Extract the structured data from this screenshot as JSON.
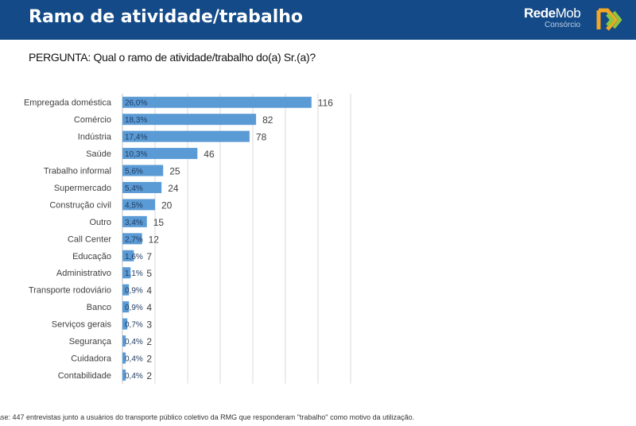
{
  "header": {
    "title": "Ramo de atividade/trabalho",
    "logo": {
      "brand_bold": "Rede",
      "brand_light": "Mob",
      "sub": "Consórcio",
      "colors": [
        "#f5a623",
        "#8dc63f"
      ]
    }
  },
  "question": "PERGUNTA: Qual o ramo de atividade/trabalho do(a) Sr.(a)?",
  "footer": "ase: 447 entrevistas junto a usuários do transporte público coletivo da RMG que responderam \"trabalho\" como motivo da utilização.",
  "chart_data": {
    "type": "bar",
    "orientation": "horizontal",
    "categories": [
      "Empregada doméstica",
      "Comércio",
      "Indústria",
      "Saúde",
      "Trabalho informal",
      "Supermercado",
      "Construção civil",
      "Outro",
      "Call Center",
      "Educação",
      "Administrativo",
      "Transporte rodoviário",
      "Banco",
      "Serviços gerais",
      "Segurança",
      "Cuidadora",
      "Contabilidade"
    ],
    "values": [
      116,
      82,
      78,
      46,
      25,
      24,
      20,
      15,
      12,
      7,
      5,
      4,
      4,
      3,
      2,
      2,
      2
    ],
    "percent_labels": [
      "26,0%",
      "18,3%",
      "17,4%",
      "10,3%",
      "5,6%",
      "5,4%",
      "4,5%",
      "3,4%",
      "2,7%",
      "1,6%",
      "1,1%",
      "0,9%",
      "0,9%",
      "0,7%",
      "0,4%",
      "0,4%",
      "0,4%"
    ],
    "xlim": [
      0,
      140
    ],
    "grid": true,
    "bar_color": "#5b9bd5"
  }
}
